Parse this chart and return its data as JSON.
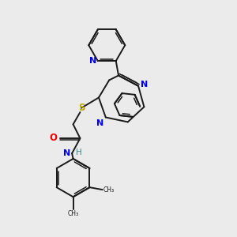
{
  "bg_color": "#ebebeb",
  "bond_color": "#1a1a1a",
  "N_color": "#0000ee",
  "O_color": "#ee0000",
  "S_color": "#bbaa00",
  "H_color": "#338888",
  "figsize": [
    3.0,
    3.0
  ],
  "dpi": 100,
  "xlim": [
    0,
    10
  ],
  "ylim": [
    0,
    10
  ]
}
